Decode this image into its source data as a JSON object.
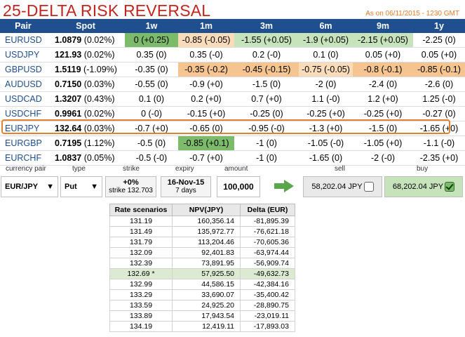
{
  "title": "25-DELTA RISK REVERSAL",
  "as_of": "As on 06/11/2015 - 1230 GMT",
  "columns": [
    "Pair",
    "Spot",
    "1w",
    "1m",
    "3m",
    "6m",
    "9m",
    "1y"
  ],
  "rows": [
    {
      "pair": "EURUSD",
      "spot": "1.0879",
      "chg": "(0.02%)",
      "cells": [
        "0 (+0.25)",
        "-0.85 (-0.05)",
        "-1.55 (+0.05)",
        "-1.9 (+0.05)",
        "-2.15 (+0.05)",
        "-2.25 (0)"
      ]
    },
    {
      "pair": "USDJPY",
      "spot": "121.93",
      "chg": "(0.02%)",
      "cells": [
        "0.35 (0)",
        "0.35 (-0)",
        "0.2 (-0)",
        "0.1 (0)",
        "0.05 (+0)",
        "0.05 (+0)"
      ]
    },
    {
      "pair": "GBPUSD",
      "spot": "1.5119",
      "chg": "(-1.09%)",
      "cells": [
        "-0.35 (0)",
        "-0.35 (-0.2)",
        "-0.45 (-0.15)",
        "-0.75 (-0.05)",
        "-0.8 (-0.1)",
        "-0.85 (-0.1)"
      ]
    },
    {
      "pair": "AUDUSD",
      "spot": "0.7150",
      "chg": "(0.03%)",
      "cells": [
        "-0.55 (0)",
        "-0.9 (+0)",
        "-1.5 (0)",
        "-2 (0)",
        "-2.4 (0)",
        "-2.6 (0)"
      ]
    },
    {
      "pair": "USDCAD",
      "spot": "1.3207",
      "chg": "(0.43%)",
      "cells": [
        "0.1 (0)",
        "0.2 (+0)",
        "0.7 (+0)",
        "1.1 (-0)",
        "1.2 (+0)",
        "1.25 (-0)"
      ]
    },
    {
      "pair": "USDCHF",
      "spot": "0.9961",
      "chg": "(0.02%)",
      "cells": [
        "0 (-0)",
        "-0.15 (+0)",
        "-0.25 (0)",
        "-0.25 (+0)",
        "-0.25 (+0)",
        "-0.27 (0)"
      ]
    },
    {
      "pair": "EURJPY",
      "spot": "132.64",
      "chg": "(0.03%)",
      "cells": [
        "-0.7 (+0)",
        "-0.65 (0)",
        "-0.95 (-0)",
        "-1.3 (+0)",
        "-1.5 (0)",
        "-1.65 (+0)"
      ]
    },
    {
      "pair": "EURGBP",
      "spot": "0.7195",
      "chg": "(1.12%)",
      "cells": [
        "-0.5 (0)",
        "-0.85 (+0.1)",
        "-1 (0)",
        "-1.05 (-0)",
        "-1.05 (+0)",
        "-1.1 (-0)"
      ]
    },
    {
      "pair": "EURCHF",
      "spot": "1.0837",
      "chg": "(0.05%)",
      "cells": [
        "-0.5 (-0)",
        "-0.7 (+0)",
        "-1 (0)",
        "-1.65 (0)",
        "-2 (-0)",
        "-2.35 (+0)"
      ]
    }
  ],
  "trade": {
    "labels": {
      "currency_pair": "currency pair",
      "type": "type",
      "strike": "strike",
      "expiry": "expiry",
      "amount": "amount",
      "sell": "sell",
      "buy": "buy"
    },
    "currency_pair": "EUR/JPY",
    "type": "Put",
    "strike_offset": "+0%",
    "strike_value": "strike 132.703",
    "expiry_date": "16-Nov-15",
    "expiry_days": "7 days",
    "amount": "100,000",
    "sell_value": "58,202.04 JPY",
    "buy_value": "68,202.04 JPY"
  },
  "scenarios": {
    "headers": [
      "Rate scenarios",
      "NPV(JPY)",
      "Delta (EUR)"
    ],
    "rows": [
      [
        "131.19",
        "160,356.14",
        "-81,895.39"
      ],
      [
        "131.49",
        "135,972.77",
        "-76,621.18"
      ],
      [
        "131.79",
        "113,204.46",
        "-70,605.36"
      ],
      [
        "132.09",
        "92,401.83",
        "-63,974.44"
      ],
      [
        "132.39",
        "73,891.95",
        "-56,909.74"
      ],
      [
        "132.69 *",
        "57,925.50",
        "-49,632.73"
      ],
      [
        "132.99",
        "44,586.15",
        "-42,384.16"
      ],
      [
        "133.29",
        "33,690.07",
        "-35,400.42"
      ],
      [
        "133.59",
        "24,925.20",
        "-28,890.75"
      ],
      [
        "133.89",
        "17,943.54",
        "-23,019.11"
      ],
      [
        "134.19",
        "12,419.11",
        "-17,893.03"
      ]
    ]
  }
}
